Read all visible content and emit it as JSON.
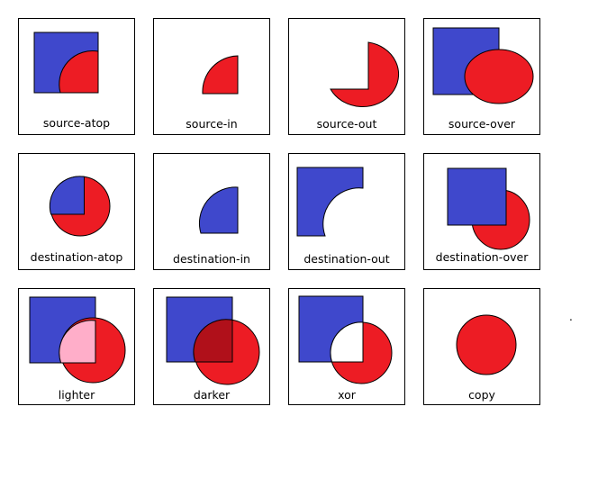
{
  "colors": {
    "square": "#3f48cc",
    "circle": "#ed1c24",
    "lighter_overlap": "#ffaec9",
    "darker_overlap": "#b0101a"
  },
  "tiles": [
    {
      "label": "source-atop"
    },
    {
      "label": "source-in"
    },
    {
      "label": "source-out"
    },
    {
      "label": "source-over"
    },
    {
      "label": "destination-atop"
    },
    {
      "label": "destination-in"
    },
    {
      "label": "destination-out"
    },
    {
      "label": "destination-over"
    },
    {
      "label": "lighter"
    },
    {
      "label": "darker"
    },
    {
      "label": "xor"
    },
    {
      "label": "copy"
    }
  ],
  "stray_mark": "."
}
